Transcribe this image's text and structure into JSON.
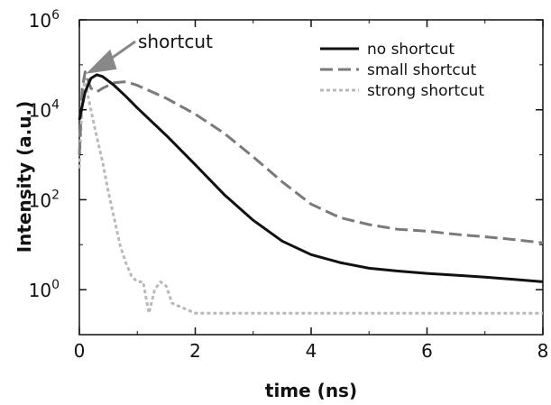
{
  "chart_data": {
    "type": "line",
    "title": "",
    "xlabel": "time (ns)",
    "ylabel": "Intensity (a.u.)",
    "xlim": [
      0,
      8
    ],
    "ylim": [
      0.1,
      1000000
    ],
    "yscale": "log",
    "grid": false,
    "legend_position": "top-right",
    "x_ticks": [
      {
        "value": 0,
        "label": "0"
      },
      {
        "value": 2,
        "label": "2"
      },
      {
        "value": 4,
        "label": "4"
      },
      {
        "value": 6,
        "label": "6"
      },
      {
        "value": 8,
        "label": "8"
      }
    ],
    "y_ticks": [
      {
        "value": 1,
        "base": "10",
        "exp": "0"
      },
      {
        "value": 100,
        "base": "10",
        "exp": "2"
      },
      {
        "value": 10000,
        "base": "10",
        "exp": "4"
      },
      {
        "value": 1000000,
        "base": "10",
        "exp": "6"
      }
    ],
    "annotation": {
      "text": "shortcut",
      "x": 0.18,
      "y": 70000
    },
    "series": [
      {
        "name": "no shortcut",
        "color": "#111111",
        "dash": "solid",
        "x": [
          0,
          0.1,
          0.2,
          0.3,
          0.4,
          0.6,
          0.8,
          1.0,
          1.5,
          2.0,
          2.5,
          3.0,
          3.5,
          4.0,
          4.5,
          5.0,
          5.5,
          6.0,
          6.5,
          7.0,
          7.5,
          8.0
        ],
        "y": [
          6000,
          25000,
          50000,
          60000,
          55000,
          35000,
          20000,
          11000,
          2700,
          600,
          130,
          35,
          12,
          6,
          4,
          3,
          2.6,
          2.3,
          2.1,
          1.9,
          1.7,
          1.5
        ]
      },
      {
        "name": "small shortcut",
        "color": "#7a7a7a",
        "dash": "long-dash",
        "x": [
          0,
          0.05,
          0.1,
          0.2,
          0.3,
          0.4,
          0.6,
          0.8,
          1.0,
          1.5,
          2.0,
          2.5,
          3.0,
          3.5,
          4.0,
          4.5,
          5.0,
          5.5,
          6.0,
          6.5,
          7.0,
          7.5,
          8.0
        ],
        "y": [
          1000,
          30000,
          70000,
          30000,
          25000,
          30000,
          40000,
          42000,
          35000,
          18000,
          8000,
          3000,
          900,
          250,
          80,
          40,
          28,
          22,
          20,
          17,
          15,
          13,
          11
        ]
      },
      {
        "name": "strong shortcut",
        "color": "#b9b9b9",
        "dash": "short-dash",
        "x": [
          0,
          0.05,
          0.1,
          0.15,
          0.2,
          0.3,
          0.4,
          0.5,
          0.6,
          0.7,
          0.8,
          0.9,
          1.0,
          1.1,
          1.2,
          1.3,
          1.4,
          1.5,
          1.6,
          2.0,
          3.0,
          4.0,
          5.0,
          6.0,
          7.0,
          8.0
        ],
        "y": [
          500,
          20000,
          50000,
          20000,
          10000,
          2500,
          700,
          150,
          40,
          10,
          4,
          2,
          1.5,
          1.5,
          0.3,
          1.0,
          1.5,
          1.2,
          0.5,
          0.3,
          0.3,
          0.3,
          0.3,
          0.3,
          0.3,
          0.3
        ]
      }
    ]
  }
}
